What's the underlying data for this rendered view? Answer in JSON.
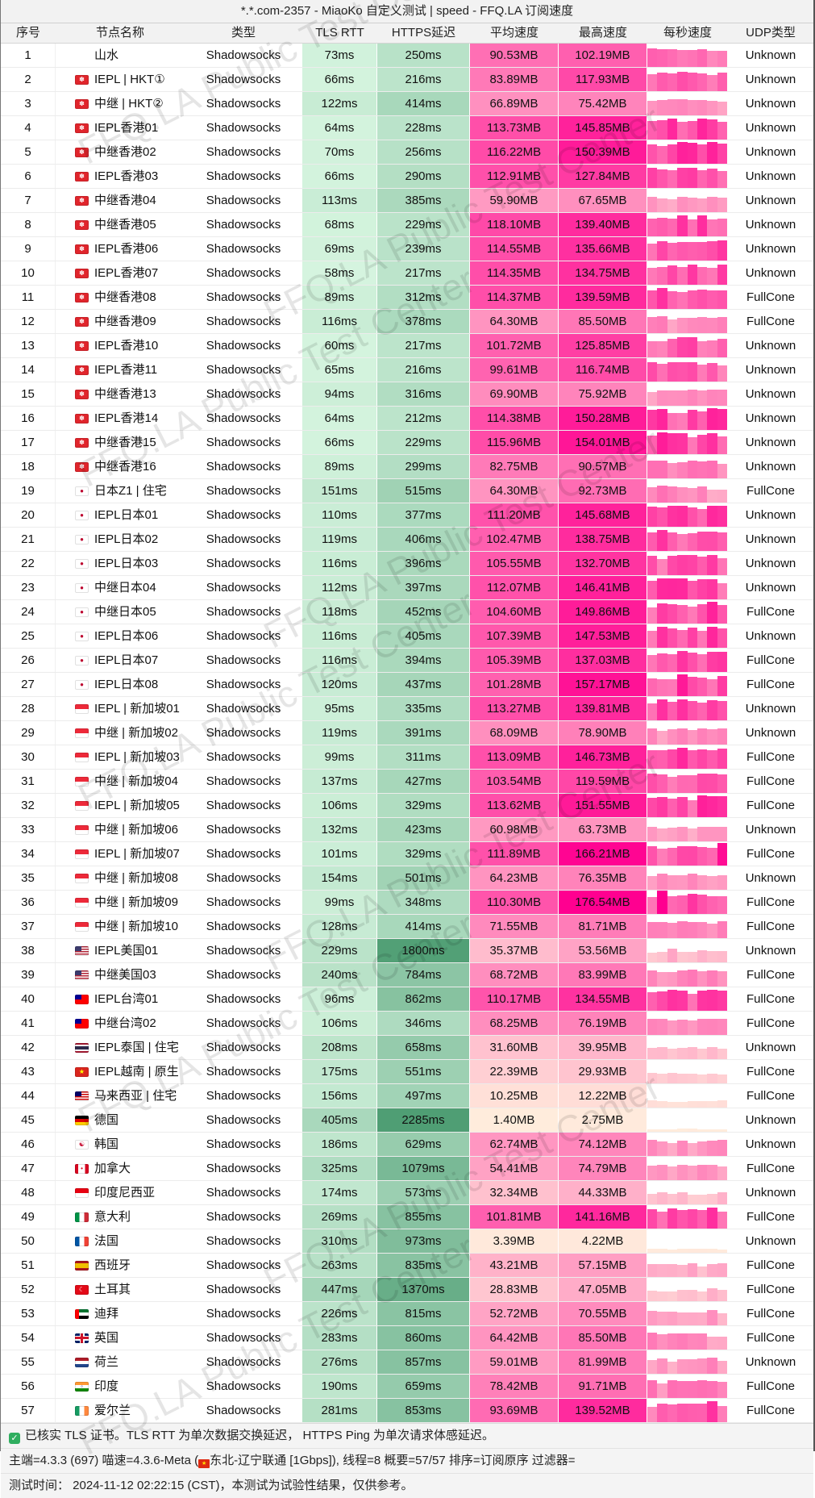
{
  "title": "*.*.com-2357 - MiaoKo 自定义测试 | speed - FFQ.LA 订阅速度",
  "watermark": "FFQ.LA Public Test Center",
  "columns": [
    "序号",
    "节点名称",
    "类型",
    "TLS RTT",
    "HTTPS延迟",
    "平均速度",
    "最高速度",
    "每秒速度",
    "UDP类型"
  ],
  "colors": {
    "header_bg": "#f2f2f2",
    "latency_ramp_light": "#d9f7e2",
    "latency_ramp_dark": "#4f9e74",
    "speed_ramp_light": "#ffeedd",
    "speed_ramp_dark": "#ff0090",
    "check_green": "#2fae5f"
  },
  "rows": [
    {
      "no": 1,
      "flag": null,
      "name": "山水",
      "type": "Shadowsocks",
      "tls": "73ms",
      "https": "250ms",
      "avg": "90.53MB",
      "max": "102.19MB",
      "udp": "Unknown"
    },
    {
      "no": 2,
      "flag": "hk",
      "name": "IEPL | HKT①",
      "type": "Shadowsocks",
      "tls": "66ms",
      "https": "216ms",
      "avg": "83.89MB",
      "max": "117.93MB",
      "udp": "Unknown"
    },
    {
      "no": 3,
      "flag": "hk",
      "name": "中继 | HKT②",
      "type": "Shadowsocks",
      "tls": "122ms",
      "https": "414ms",
      "avg": "66.89MB",
      "max": "75.42MB",
      "udp": "Unknown"
    },
    {
      "no": 4,
      "flag": "hk",
      "name": "IEPL香港01",
      "type": "Shadowsocks",
      "tls": "64ms",
      "https": "228ms",
      "avg": "113.73MB",
      "max": "145.85MB",
      "udp": "Unknown"
    },
    {
      "no": 5,
      "flag": "hk",
      "name": "中继香港02",
      "type": "Shadowsocks",
      "tls": "70ms",
      "https": "256ms",
      "avg": "116.22MB",
      "max": "150.39MB",
      "udp": "Unknown"
    },
    {
      "no": 6,
      "flag": "hk",
      "name": "IEPL香港03",
      "type": "Shadowsocks",
      "tls": "66ms",
      "https": "290ms",
      "avg": "112.91MB",
      "max": "127.84MB",
      "udp": "Unknown"
    },
    {
      "no": 7,
      "flag": "hk",
      "name": "中继香港04",
      "type": "Shadowsocks",
      "tls": "113ms",
      "https": "385ms",
      "avg": "59.90MB",
      "max": "67.65MB",
      "udp": "Unknown"
    },
    {
      "no": 8,
      "flag": "hk",
      "name": "中继香港05",
      "type": "Shadowsocks",
      "tls": "68ms",
      "https": "229ms",
      "avg": "118.10MB",
      "max": "139.40MB",
      "udp": "Unknown"
    },
    {
      "no": 9,
      "flag": "hk",
      "name": "IEPL香港06",
      "type": "Shadowsocks",
      "tls": "69ms",
      "https": "239ms",
      "avg": "114.55MB",
      "max": "135.66MB",
      "udp": "Unknown"
    },
    {
      "no": 10,
      "flag": "hk",
      "name": "IEPL香港07",
      "type": "Shadowsocks",
      "tls": "58ms",
      "https": "217ms",
      "avg": "114.35MB",
      "max": "134.75MB",
      "udp": "Unknown"
    },
    {
      "no": 11,
      "flag": "hk",
      "name": "中继香港08",
      "type": "Shadowsocks",
      "tls": "89ms",
      "https": "312ms",
      "avg": "114.37MB",
      "max": "139.59MB",
      "udp": "FullCone"
    },
    {
      "no": 12,
      "flag": "hk",
      "name": "中继香港09",
      "type": "Shadowsocks",
      "tls": "116ms",
      "https": "378ms",
      "avg": "64.30MB",
      "max": "85.50MB",
      "udp": "FullCone"
    },
    {
      "no": 13,
      "flag": "hk",
      "name": "IEPL香港10",
      "type": "Shadowsocks",
      "tls": "60ms",
      "https": "217ms",
      "avg": "101.72MB",
      "max": "125.85MB",
      "udp": "Unknown"
    },
    {
      "no": 14,
      "flag": "hk",
      "name": "IEPL香港11",
      "type": "Shadowsocks",
      "tls": "65ms",
      "https": "216ms",
      "avg": "99.61MB",
      "max": "116.74MB",
      "udp": "Unknown"
    },
    {
      "no": 15,
      "flag": "hk",
      "name": "中继香港13",
      "type": "Shadowsocks",
      "tls": "94ms",
      "https": "316ms",
      "avg": "69.90MB",
      "max": "75.92MB",
      "udp": "Unknown"
    },
    {
      "no": 16,
      "flag": "hk",
      "name": "IEPL香港14",
      "type": "Shadowsocks",
      "tls": "64ms",
      "https": "212ms",
      "avg": "114.38MB",
      "max": "150.28MB",
      "udp": "Unknown"
    },
    {
      "no": 17,
      "flag": "hk",
      "name": "中继香港15",
      "type": "Shadowsocks",
      "tls": "66ms",
      "https": "229ms",
      "avg": "115.96MB",
      "max": "154.01MB",
      "udp": "Unknown"
    },
    {
      "no": 18,
      "flag": "hk",
      "name": "中继香港16",
      "type": "Shadowsocks",
      "tls": "89ms",
      "https": "299ms",
      "avg": "82.75MB",
      "max": "90.57MB",
      "udp": "Unknown"
    },
    {
      "no": 19,
      "flag": "jp",
      "name": "日本Z1 | 住宅",
      "type": "Shadowsocks",
      "tls": "151ms",
      "https": "515ms",
      "avg": "64.30MB",
      "max": "92.73MB",
      "udp": "FullCone"
    },
    {
      "no": 20,
      "flag": "jp",
      "name": "IEPL日本01",
      "type": "Shadowsocks",
      "tls": "110ms",
      "https": "377ms",
      "avg": "111.20MB",
      "max": "145.68MB",
      "udp": "Unknown"
    },
    {
      "no": 21,
      "flag": "jp",
      "name": "IEPL日本02",
      "type": "Shadowsocks",
      "tls": "119ms",
      "https": "406ms",
      "avg": "102.47MB",
      "max": "138.75MB",
      "udp": "Unknown"
    },
    {
      "no": 22,
      "flag": "jp",
      "name": "IEPL日本03",
      "type": "Shadowsocks",
      "tls": "116ms",
      "https": "396ms",
      "avg": "105.55MB",
      "max": "132.70MB",
      "udp": "Unknown"
    },
    {
      "no": 23,
      "flag": "jp",
      "name": "中继日本04",
      "type": "Shadowsocks",
      "tls": "112ms",
      "https": "397ms",
      "avg": "112.07MB",
      "max": "146.41MB",
      "udp": "Unknown"
    },
    {
      "no": 24,
      "flag": "jp",
      "name": "中继日本05",
      "type": "Shadowsocks",
      "tls": "118ms",
      "https": "452ms",
      "avg": "104.60MB",
      "max": "149.86MB",
      "udp": "FullCone"
    },
    {
      "no": 25,
      "flag": "jp",
      "name": "IEPL日本06",
      "type": "Shadowsocks",
      "tls": "116ms",
      "https": "405ms",
      "avg": "107.39MB",
      "max": "147.53MB",
      "udp": "Unknown"
    },
    {
      "no": 26,
      "flag": "jp",
      "name": "IEPL日本07",
      "type": "Shadowsocks",
      "tls": "116ms",
      "https": "394ms",
      "avg": "105.39MB",
      "max": "137.03MB",
      "udp": "FullCone"
    },
    {
      "no": 27,
      "flag": "jp",
      "name": "IEPL日本08",
      "type": "Shadowsocks",
      "tls": "120ms",
      "https": "437ms",
      "avg": "101.28MB",
      "max": "157.17MB",
      "udp": "FullCone"
    },
    {
      "no": 28,
      "flag": "sg",
      "name": "IEPL | 新加坡01",
      "type": "Shadowsocks",
      "tls": "95ms",
      "https": "335ms",
      "avg": "113.27MB",
      "max": "139.81MB",
      "udp": "Unknown"
    },
    {
      "no": 29,
      "flag": "sg",
      "name": "中继 | 新加坡02",
      "type": "Shadowsocks",
      "tls": "119ms",
      "https": "391ms",
      "avg": "68.09MB",
      "max": "78.90MB",
      "udp": "Unknown"
    },
    {
      "no": 30,
      "flag": "sg",
      "name": "IEPL | 新加坡03",
      "type": "Shadowsocks",
      "tls": "99ms",
      "https": "311ms",
      "avg": "113.09MB",
      "max": "146.73MB",
      "udp": "FullCone"
    },
    {
      "no": 31,
      "flag": "sg",
      "name": "中继 | 新加坡04",
      "type": "Shadowsocks",
      "tls": "137ms",
      "https": "427ms",
      "avg": "103.54MB",
      "max": "119.59MB",
      "udp": "FullCone"
    },
    {
      "no": 32,
      "flag": "sg",
      "name": "IEPL | 新加坡05",
      "type": "Shadowsocks",
      "tls": "106ms",
      "https": "329ms",
      "avg": "113.62MB",
      "max": "151.55MB",
      "udp": "FullCone"
    },
    {
      "no": 33,
      "flag": "sg",
      "name": "中继 | 新加坡06",
      "type": "Shadowsocks",
      "tls": "132ms",
      "https": "423ms",
      "avg": "60.98MB",
      "max": "63.73MB",
      "udp": "Unknown"
    },
    {
      "no": 34,
      "flag": "sg",
      "name": "IEPL | 新加坡07",
      "type": "Shadowsocks",
      "tls": "101ms",
      "https": "329ms",
      "avg": "111.89MB",
      "max": "166.21MB",
      "udp": "FullCone"
    },
    {
      "no": 35,
      "flag": "sg",
      "name": "中继 | 新加坡08",
      "type": "Shadowsocks",
      "tls": "154ms",
      "https": "501ms",
      "avg": "64.23MB",
      "max": "76.35MB",
      "udp": "Unknown"
    },
    {
      "no": 36,
      "flag": "sg",
      "name": "中继 | 新加坡09",
      "type": "Shadowsocks",
      "tls": "99ms",
      "https": "348ms",
      "avg": "110.30MB",
      "max": "176.54MB",
      "udp": "FullCone"
    },
    {
      "no": 37,
      "flag": "sg",
      "name": "中继 | 新加坡10",
      "type": "Shadowsocks",
      "tls": "128ms",
      "https": "414ms",
      "avg": "71.55MB",
      "max": "81.71MB",
      "udp": "FullCone"
    },
    {
      "no": 38,
      "flag": "us",
      "name": "IEPL美国01",
      "type": "Shadowsocks",
      "tls": "229ms",
      "https": "1800ms",
      "avg": "35.37MB",
      "max": "53.56MB",
      "udp": "Unknown"
    },
    {
      "no": 39,
      "flag": "us",
      "name": "中继美国03",
      "type": "Shadowsocks",
      "tls": "240ms",
      "https": "784ms",
      "avg": "68.72MB",
      "max": "83.99MB",
      "udp": "FullCone"
    },
    {
      "no": 40,
      "flag": "tw",
      "name": "IEPL台湾01",
      "type": "Shadowsocks",
      "tls": "96ms",
      "https": "862ms",
      "avg": "110.17MB",
      "max": "134.55MB",
      "udp": "FullCone"
    },
    {
      "no": 41,
      "flag": "tw",
      "name": "中继台湾02",
      "type": "Shadowsocks",
      "tls": "106ms",
      "https": "346ms",
      "avg": "68.25MB",
      "max": "76.19MB",
      "udp": "FullCone"
    },
    {
      "no": 42,
      "flag": "th",
      "name": "IEPL泰国 | 住宅",
      "type": "Shadowsocks",
      "tls": "208ms",
      "https": "658ms",
      "avg": "31.60MB",
      "max": "39.95MB",
      "udp": "Unknown"
    },
    {
      "no": 43,
      "flag": "vn",
      "name": "IEPL越南 | 原生",
      "type": "Shadowsocks",
      "tls": "175ms",
      "https": "551ms",
      "avg": "22.39MB",
      "max": "29.93MB",
      "udp": "FullCone"
    },
    {
      "no": 44,
      "flag": "my",
      "name": "马来西亚 | 住宅",
      "type": "Shadowsocks",
      "tls": "156ms",
      "https": "497ms",
      "avg": "10.25MB",
      "max": "12.22MB",
      "udp": "FullCone"
    },
    {
      "no": 45,
      "flag": "de",
      "name": "德国",
      "type": "Shadowsocks",
      "tls": "405ms",
      "https": "2285ms",
      "avg": "1.40MB",
      "max": "2.75MB",
      "udp": "Unknown"
    },
    {
      "no": 46,
      "flag": "kr",
      "name": "韩国",
      "type": "Shadowsocks",
      "tls": "186ms",
      "https": "629ms",
      "avg": "62.74MB",
      "max": "74.12MB",
      "udp": "Unknown"
    },
    {
      "no": 47,
      "flag": "ca",
      "name": "加拿大",
      "type": "Shadowsocks",
      "tls": "325ms",
      "https": "1079ms",
      "avg": "54.41MB",
      "max": "74.79MB",
      "udp": "FullCone"
    },
    {
      "no": 48,
      "flag": "id",
      "name": "印度尼西亚",
      "type": "Shadowsocks",
      "tls": "174ms",
      "https": "573ms",
      "avg": "32.34MB",
      "max": "44.33MB",
      "udp": "Unknown"
    },
    {
      "no": 49,
      "flag": "it",
      "name": "意大利",
      "type": "Shadowsocks",
      "tls": "269ms",
      "https": "855ms",
      "avg": "101.81MB",
      "max": "141.16MB",
      "udp": "FullCone"
    },
    {
      "no": 50,
      "flag": "fr",
      "name": "法国",
      "type": "Shadowsocks",
      "tls": "310ms",
      "https": "973ms",
      "avg": "3.39MB",
      "max": "4.22MB",
      "udp": "Unknown"
    },
    {
      "no": 51,
      "flag": "es",
      "name": "西班牙",
      "type": "Shadowsocks",
      "tls": "263ms",
      "https": "835ms",
      "avg": "43.21MB",
      "max": "57.15MB",
      "udp": "FullCone"
    },
    {
      "no": 52,
      "flag": "tr",
      "name": "土耳其",
      "type": "Shadowsocks",
      "tls": "447ms",
      "https": "1370ms",
      "avg": "28.83MB",
      "max": "47.05MB",
      "udp": "FullCone"
    },
    {
      "no": 53,
      "flag": "ae",
      "name": "迪拜",
      "type": "Shadowsocks",
      "tls": "226ms",
      "https": "815ms",
      "avg": "52.72MB",
      "max": "70.55MB",
      "udp": "FullCone"
    },
    {
      "no": 54,
      "flag": "gb",
      "name": "英国",
      "type": "Shadowsocks",
      "tls": "283ms",
      "https": "860ms",
      "avg": "64.42MB",
      "max": "85.50MB",
      "udp": "FullCone"
    },
    {
      "no": 55,
      "flag": "nl",
      "name": "荷兰",
      "type": "Shadowsocks",
      "tls": "276ms",
      "https": "857ms",
      "avg": "59.01MB",
      "max": "81.99MB",
      "udp": "Unknown"
    },
    {
      "no": 56,
      "flag": "in",
      "name": "印度",
      "type": "Shadowsocks",
      "tls": "190ms",
      "https": "659ms",
      "avg": "78.42MB",
      "max": "91.71MB",
      "udp": "FullCone"
    },
    {
      "no": 57,
      "flag": "ie",
      "name": "爱尔兰",
      "type": "Shadowsocks",
      "tls": "281ms",
      "https": "853ms",
      "avg": "93.69MB",
      "max": "139.52MB",
      "udp": "FullCone"
    }
  ],
  "footer": {
    "line1": "已核实 TLS 证书。TLS RTT 为单次数据交换延迟， HTTPS Ping 为单次请求体感延迟。",
    "line2_pre": "主端=4.3.3 (697) 喵速=4.3.6-Meta (",
    "line2_post": "东北-辽宁联通 [1Gbps]), 线程=8 概要=57/57 排序=订阅原序 过滤器=",
    "line3": "测试时间： 2024-11-12 02:22:15 (CST)，本测试为试验性结果，仅供参考。"
  }
}
